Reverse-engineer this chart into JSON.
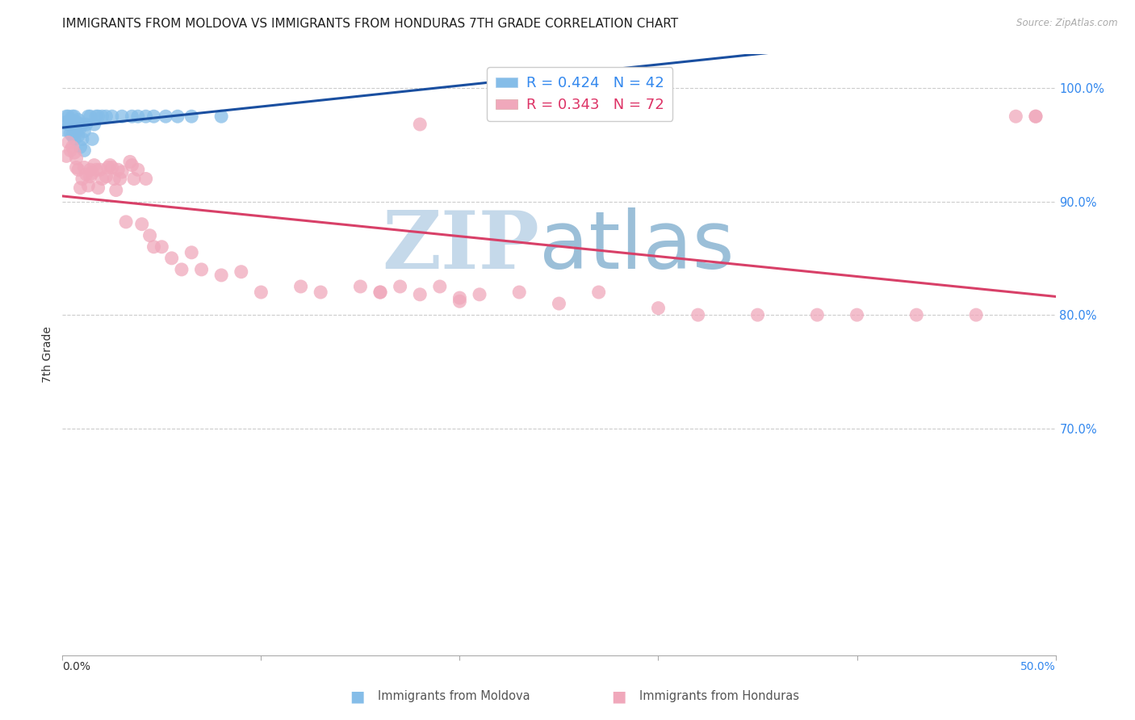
{
  "title": "IMMIGRANTS FROM MOLDOVA VS IMMIGRANTS FROM HONDURAS 7TH GRADE CORRELATION CHART",
  "source": "Source: ZipAtlas.com",
  "ylabel": "7th Grade",
  "xlim": [
    0.0,
    0.5
  ],
  "ylim": [
    0.5,
    1.03
  ],
  "ytick_vals": [
    1.0,
    0.9,
    0.8,
    0.7
  ],
  "ytick_labels": [
    "100.0%",
    "90.0%",
    "80.0%",
    "70.0%"
  ],
  "xtick_left_label": "0.0%",
  "xtick_right_label": "50.0%",
  "moldova_scatter_color": "#85bde8",
  "moldova_line_color": "#1a4fa0",
  "honduras_scatter_color": "#f0a8bb",
  "honduras_line_color": "#d84068",
  "legend_text_blue": "#3388ee",
  "legend_text_pink": "#dd3366",
  "right_tick_color": "#3388ee",
  "moldova_x": [
    0.001,
    0.002,
    0.002,
    0.003,
    0.003,
    0.004,
    0.004,
    0.005,
    0.005,
    0.005,
    0.006,
    0.006,
    0.006,
    0.007,
    0.007,
    0.008,
    0.008,
    0.009,
    0.009,
    0.01,
    0.01,
    0.011,
    0.011,
    0.012,
    0.013,
    0.014,
    0.015,
    0.016,
    0.017,
    0.018,
    0.02,
    0.022,
    0.025,
    0.03,
    0.035,
    0.038,
    0.042,
    0.046,
    0.052,
    0.058,
    0.065,
    0.08
  ],
  "moldova_y": [
    0.963,
    0.97,
    0.975,
    0.968,
    0.975,
    0.96,
    0.972,
    0.958,
    0.968,
    0.975,
    0.955,
    0.965,
    0.975,
    0.962,
    0.97,
    0.958,
    0.972,
    0.948,
    0.965,
    0.955,
    0.968,
    0.945,
    0.962,
    0.968,
    0.975,
    0.975,
    0.955,
    0.968,
    0.975,
    0.975,
    0.975,
    0.975,
    0.975,
    0.975,
    0.975,
    0.975,
    0.975,
    0.975,
    0.975,
    0.975,
    0.975,
    0.975
  ],
  "honduras_x": [
    0.002,
    0.003,
    0.004,
    0.005,
    0.006,
    0.007,
    0.007,
    0.008,
    0.009,
    0.01,
    0.011,
    0.012,
    0.013,
    0.014,
    0.014,
    0.015,
    0.016,
    0.017,
    0.018,
    0.019,
    0.02,
    0.022,
    0.023,
    0.024,
    0.025,
    0.026,
    0.027,
    0.028,
    0.029,
    0.03,
    0.032,
    0.034,
    0.035,
    0.036,
    0.038,
    0.04,
    0.042,
    0.044,
    0.046,
    0.05,
    0.055,
    0.06,
    0.065,
    0.07,
    0.08,
    0.09,
    0.1,
    0.12,
    0.13,
    0.15,
    0.16,
    0.17,
    0.18,
    0.19,
    0.2,
    0.21,
    0.23,
    0.25,
    0.27,
    0.3,
    0.32,
    0.35,
    0.38,
    0.4,
    0.43,
    0.46,
    0.49,
    0.16,
    0.18,
    0.2,
    0.48,
    0.49
  ],
  "honduras_y": [
    0.94,
    0.952,
    0.945,
    0.948,
    0.943,
    0.938,
    0.93,
    0.928,
    0.912,
    0.92,
    0.93,
    0.924,
    0.914,
    0.928,
    0.922,
    0.925,
    0.932,
    0.928,
    0.912,
    0.928,
    0.92,
    0.922,
    0.93,
    0.932,
    0.93,
    0.92,
    0.91,
    0.928,
    0.92,
    0.926,
    0.882,
    0.935,
    0.932,
    0.92,
    0.928,
    0.88,
    0.92,
    0.87,
    0.86,
    0.86,
    0.85,
    0.84,
    0.855,
    0.84,
    0.835,
    0.838,
    0.82,
    0.825,
    0.82,
    0.825,
    0.82,
    0.825,
    0.968,
    0.825,
    0.812,
    0.818,
    0.82,
    0.81,
    0.82,
    0.806,
    0.8,
    0.8,
    0.8,
    0.8,
    0.8,
    0.8,
    0.975,
    0.82,
    0.818,
    0.815,
    0.975,
    0.975
  ],
  "watermark_zip_color": "#c5d9ea",
  "watermark_atlas_color": "#9bbfd8",
  "background_color": "#ffffff",
  "grid_color": "#cccccc"
}
